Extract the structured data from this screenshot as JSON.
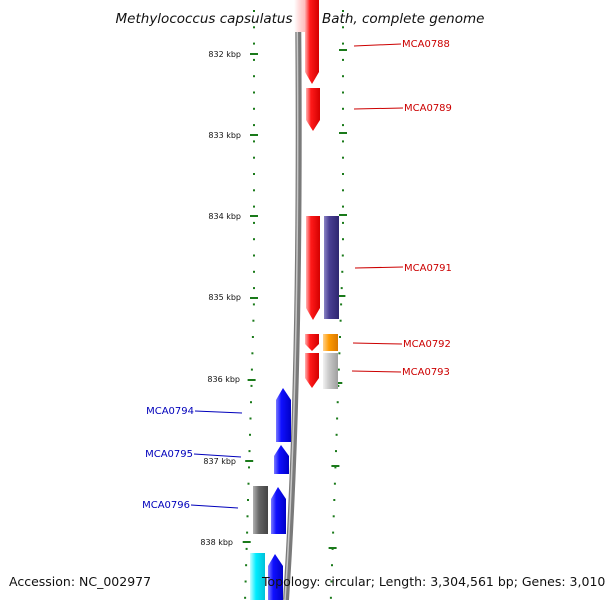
{
  "title": "Methylococcus capsulatus str. Bath, complete genome",
  "scale": {
    "unit": "kbp",
    "ticks": [
      "832 kbp",
      "833 kbp",
      "834 kbp",
      "835 kbp",
      "836 kbp",
      "837 kbp",
      "838 kbp"
    ]
  },
  "colors": {
    "forward_label": "#cc0000",
    "reverse_label": "#0000bb",
    "ruler": "#1a7a1a",
    "backbone": "#8c8c8c"
  },
  "genes": [
    {
      "name": "MCA0788",
      "strand": "+"
    },
    {
      "name": "MCA0789",
      "strand": "+"
    },
    {
      "name": "MCA0791",
      "strand": "+"
    },
    {
      "name": "MCA0792",
      "strand": "+"
    },
    {
      "name": "MCA0793",
      "strand": "+"
    },
    {
      "name": "MCA0794",
      "strand": "-"
    },
    {
      "name": "MCA0795",
      "strand": "-"
    },
    {
      "name": "MCA0796",
      "strand": "-"
    }
  ],
  "footer": {
    "accession": "Accession: NC_002977",
    "summary": "Topology: circular; Length: 3,304,561 bp; Genes: 3,010"
  }
}
